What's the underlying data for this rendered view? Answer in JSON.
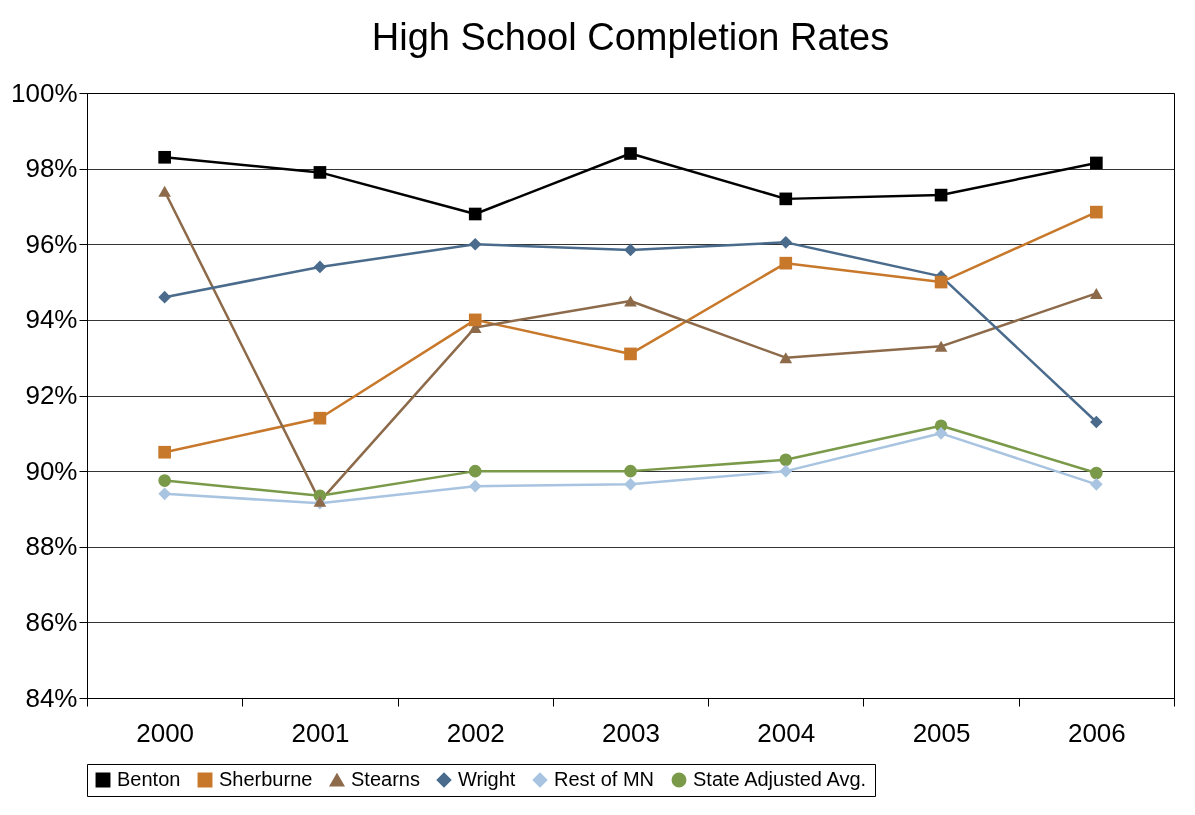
{
  "chart_data": {
    "type": "line",
    "title": "High School Completion Rates",
    "categories": [
      "2000",
      "2001",
      "2002",
      "2003",
      "2004",
      "2005",
      "2006"
    ],
    "series": [
      {
        "name": "Benton",
        "color": "#000000",
        "marker": "square",
        "values": [
          98.3,
          97.9,
          96.8,
          98.4,
          97.2,
          97.3,
          98.15
        ]
      },
      {
        "name": "Sherburne",
        "color": "#c8782a",
        "marker": "square",
        "values": [
          90.5,
          91.4,
          94.0,
          93.1,
          95.5,
          95.0,
          96.85
        ]
      },
      {
        "name": "Stearns",
        "color": "#8c6a4a",
        "marker": "triangle",
        "values": [
          97.4,
          89.2,
          93.8,
          94.5,
          93.0,
          93.3,
          94.7
        ]
      },
      {
        "name": "Wright",
        "color": "#4a6b8c",
        "marker": "diamond",
        "values": [
          94.6,
          95.4,
          96.0,
          95.85,
          96.05,
          95.15,
          91.3
        ]
      },
      {
        "name": "Rest of MN",
        "color": "#a8c4e0",
        "marker": "diamond",
        "values": [
          89.4,
          89.15,
          89.6,
          89.65,
          90.0,
          91.0,
          89.65
        ]
      },
      {
        "name": "State Adjusted Avg.",
        "color": "#7a9a4a",
        "marker": "circle",
        "values": [
          89.75,
          89.35,
          90.0,
          90.0,
          90.3,
          91.2,
          89.95
        ]
      }
    ],
    "ylim": [
      84,
      100
    ],
    "yticks": [
      {
        "value": 84,
        "label": "84%"
      },
      {
        "value": 86,
        "label": "86%"
      },
      {
        "value": 88,
        "label": "88%"
      },
      {
        "value": 90,
        "label": "90%"
      },
      {
        "value": 92,
        "label": "92%"
      },
      {
        "value": 94,
        "label": "94%"
      },
      {
        "value": 96,
        "label": "96%"
      },
      {
        "value": 98,
        "label": "98%"
      },
      {
        "value": 100,
        "label": "100%"
      }
    ],
    "grid": "y",
    "legend": "bottom"
  }
}
